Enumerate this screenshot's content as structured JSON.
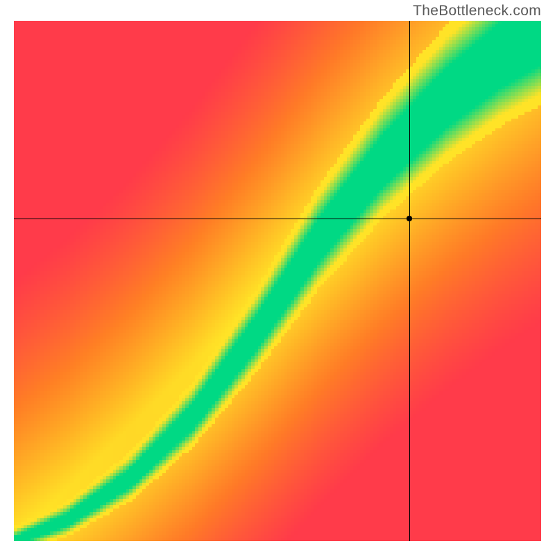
{
  "watermark": "TheBottleneck.com",
  "chart": {
    "type": "heatmap",
    "grid_size": 160,
    "background_color": "#ffffff",
    "watermark_color": "#5a5a5a",
    "watermark_fontsize": 21,
    "colors": {
      "red": "#ff3b4a",
      "orange": "#ff8a1f",
      "yellow": "#ffe327",
      "green": "#00d984"
    },
    "curve": {
      "comment": "sweet-spot ridge from lower-left to upper-right with a slight S-bend",
      "control_points_u": [
        {
          "x": 0.0,
          "y": 0.0
        },
        {
          "x": 0.1,
          "y": 0.04
        },
        {
          "x": 0.22,
          "y": 0.12
        },
        {
          "x": 0.34,
          "y": 0.24
        },
        {
          "x": 0.46,
          "y": 0.4
        },
        {
          "x": 0.58,
          "y": 0.58
        },
        {
          "x": 0.7,
          "y": 0.73
        },
        {
          "x": 0.82,
          "y": 0.85
        },
        {
          "x": 0.92,
          "y": 0.93
        },
        {
          "x": 1.0,
          "y": 0.98
        }
      ],
      "green_halfwidth_start": 0.008,
      "green_halfwidth_end": 0.065,
      "yellow_halfwidth_start": 0.025,
      "yellow_halfwidth_end": 0.15
    },
    "crosshair": {
      "x_u": 0.75,
      "y_u": 0.62,
      "line_color": "#000000",
      "line_width": 1,
      "dot_radius": 4,
      "dot_color": "#000000"
    }
  }
}
